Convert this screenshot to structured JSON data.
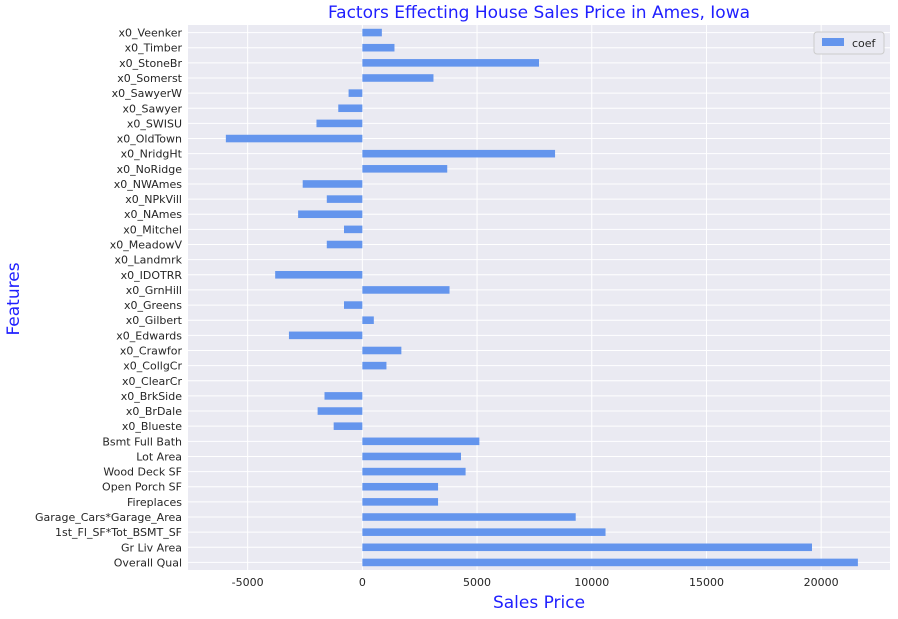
{
  "chart_data": {
    "type": "bar",
    "orientation": "horizontal",
    "title": "Factors Effecting House Sales Price in Ames, Iowa",
    "xlabel": "Sales Price",
    "ylabel": "Features",
    "xlim": [
      -7600,
      23000
    ],
    "xticks": [
      -5000,
      0,
      5000,
      10000,
      15000,
      20000
    ],
    "grid": true,
    "legend_position": "top-right",
    "bar_color": "#6495ed",
    "background_color": "#eaeaf2",
    "series": [
      {
        "name": "coef"
      }
    ],
    "categories": [
      "x0_Veenker",
      "x0_Timber",
      "x0_StoneBr",
      "x0_Somerst",
      "x0_SawyerW",
      "x0_Sawyer",
      "x0_SWISU",
      "x0_OldTown",
      "x0_NridgHt",
      "x0_NoRidge",
      "x0_NWAmes",
      "x0_NPkVill",
      "x0_NAmes",
      "x0_Mitchel",
      "x0_MeadowV",
      "x0_Landmrk",
      "x0_IDOTRR",
      "x0_GrnHill",
      "x0_Greens",
      "x0_Gilbert",
      "x0_Edwards",
      "x0_Crawfor",
      "x0_CollgCr",
      "x0_ClearCr",
      "x0_BrkSide",
      "x0_BrDale",
      "x0_Blueste",
      "Bsmt Full Bath",
      "Lot Area",
      "Wood Deck SF",
      "Open Porch SF",
      "Fireplaces",
      "Garage_Cars*Garage_Area",
      "1st_Fl_SF*Tot_BSMT_SF",
      "Gr Liv Area",
      "Overall Qual"
    ],
    "values": [
      850,
      1400,
      7700,
      3100,
      -600,
      -1050,
      -2000,
      -5950,
      8400,
      3700,
      -2600,
      -1550,
      -2800,
      -800,
      -1550,
      0,
      -3800,
      3800,
      -800,
      500,
      -3200,
      1700,
      1050,
      0,
      -1650,
      -1950,
      -1250,
      5100,
      4300,
      4500,
      3300,
      3300,
      9300,
      10600,
      19600,
      21600
    ]
  }
}
